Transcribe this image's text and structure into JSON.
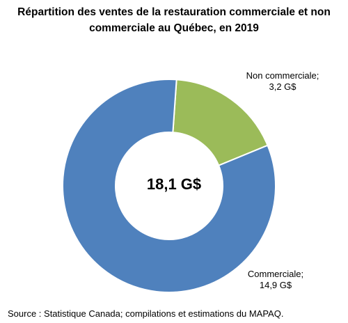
{
  "chart_data": {
    "type": "pie",
    "title_lines": [
      "Répartition des ventes de la restauration commerciale et non",
      "commerciale au Québec, en 2019"
    ],
    "center_label": "18,1 G$",
    "slices": [
      {
        "name_label": "Non commerciale;",
        "value_label": "3,2 G$",
        "value": 3.2,
        "color": "#9bbb59"
      },
      {
        "name_label": "Commerciale;",
        "value_label": "14,9 G$",
        "value": 14.9,
        "color": "#4f81bd"
      }
    ],
    "total": 18.1,
    "source": "Source : Statistique Canada; compilations et estimations du MAPAQ."
  }
}
